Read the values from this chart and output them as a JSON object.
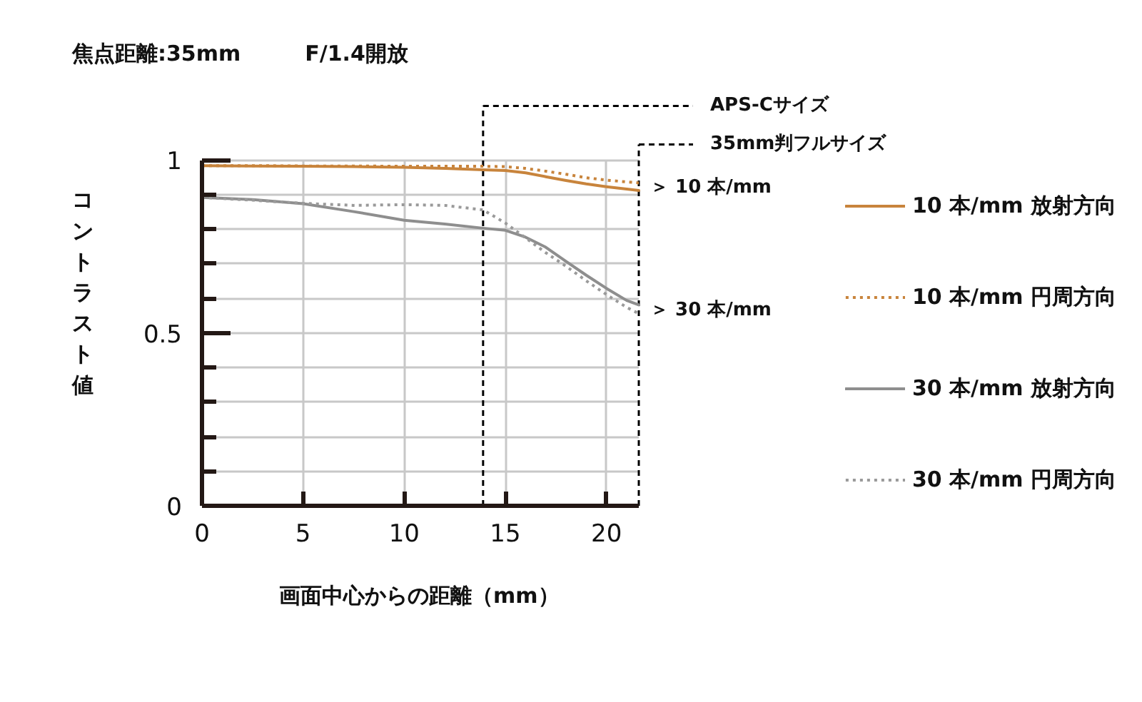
{
  "chart_data": {
    "type": "line",
    "title": "焦点距離:35mm　　　F/1.4開放",
    "xlabel": "画面中心からの距離（mm）",
    "ylabel": "コントラスト値",
    "x": [
      0,
      2.5,
      5,
      7.5,
      10,
      12,
      13.9,
      15,
      16,
      17,
      18,
      19,
      20,
      21,
      21.6
    ],
    "series": [
      {
        "name": "10 本/mm 放射方向",
        "color": "#c8843c",
        "line_style": "solid",
        "values": [
          0.984,
          0.983,
          0.982,
          0.981,
          0.979,
          0.976,
          0.972,
          0.97,
          0.963,
          0.952,
          0.941,
          0.931,
          0.923,
          0.916,
          0.912
        ]
      },
      {
        "name": "10 本/mm 円周方向",
        "color": "#c8843c",
        "line_style": "dotted",
        "values": [
          0.984,
          0.984,
          0.983,
          0.983,
          0.982,
          0.982,
          0.982,
          0.981,
          0.976,
          0.968,
          0.959,
          0.949,
          0.942,
          0.937,
          0.934
        ]
      },
      {
        "name": "30 本/mm 放射方向",
        "color": "#8e8e8e",
        "line_style": "solid",
        "values": [
          0.892,
          0.886,
          0.874,
          0.851,
          0.826,
          0.815,
          0.803,
          0.797,
          0.777,
          0.748,
          0.707,
          0.667,
          0.629,
          0.594,
          0.581
        ]
      },
      {
        "name": "30 本/mm 円周方向",
        "color": "#9a9a9a",
        "line_style": "dotted",
        "values": [
          0.892,
          0.884,
          0.875,
          0.869,
          0.871,
          0.869,
          0.856,
          0.818,
          0.775,
          0.732,
          0.693,
          0.651,
          0.611,
          0.574,
          0.556
        ]
      }
    ],
    "xlim": [
      0,
      21.6
    ],
    "ylim": [
      0,
      1
    ],
    "xticks": [
      0,
      5,
      10,
      15,
      20
    ],
    "yticks": [
      0,
      {
        "value": 0.1,
        "label": null
      },
      {
        "value": 0.2,
        "label": null
      },
      {
        "value": 0.3,
        "label": null
      },
      {
        "value": 0.4,
        "label": null
      },
      0.5,
      {
        "value": 0.6,
        "label": null
      },
      {
        "value": 0.7,
        "label": null
      },
      {
        "value": 0.8,
        "label": null
      },
      {
        "value": 0.9,
        "label": null
      },
      1
    ],
    "grid": true,
    "legend": "right",
    "ref_lines": [
      {
        "axis": "x",
        "value": 13.9,
        "label": "APS-Cサイズ",
        "color": "#000000",
        "line_style": "dashed"
      },
      {
        "axis": "x",
        "value": 21.6,
        "label": "35mm判フルサイズ",
        "color": "#000000",
        "line_style": "dashed"
      }
    ],
    "annotations": [
      {
        "text": "＞ 10 本/mm",
        "x": 21.6,
        "y": 0.92
      },
      {
        "text": "＞ 30 本/mm",
        "x": 21.6,
        "y": 0.565
      }
    ]
  }
}
